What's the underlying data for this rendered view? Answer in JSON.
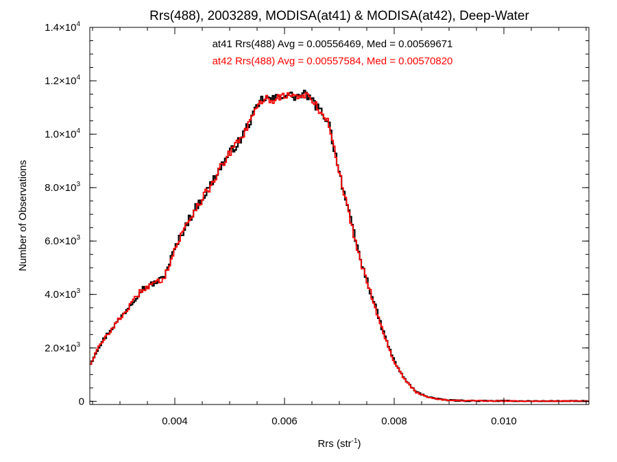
{
  "chart_data": {
    "type": "line",
    "title": "Rrs(488), 2003289, MODISA(at41) & MODISA(at42), Deep-Water",
    "xlabel": {
      "base": "Rrs (str",
      "sup": "-1",
      "close": ")"
    },
    "ylabel": "Number of Observations",
    "xlim": [
      0.00245,
      0.01155
    ],
    "ylim": [
      -120,
      14000
    ],
    "x_ticks": [
      {
        "value": 0.004,
        "label": "0.004"
      },
      {
        "value": 0.006,
        "label": "0.006"
      },
      {
        "value": 0.008,
        "label": "0.008"
      },
      {
        "value": 0.01,
        "label": "0.010"
      }
    ],
    "y_ticks": [
      {
        "value": 0,
        "label": "0",
        "exp": ""
      },
      {
        "value": 2000,
        "label": "2.0×10",
        "exp": "3"
      },
      {
        "value": 4000,
        "label": "4.0×10",
        "exp": "3"
      },
      {
        "value": 6000,
        "label": "6.0×10",
        "exp": "3"
      },
      {
        "value": 8000,
        "label": "8.0×10",
        "exp": "3"
      },
      {
        "value": 10000,
        "label": "1.0×10",
        "exp": "4"
      },
      {
        "value": 12000,
        "label": "1.2×10",
        "exp": "4"
      },
      {
        "value": 14000,
        "label": "1.4×10",
        "exp": "4"
      }
    ],
    "x_minor_step": 0.0005,
    "y_minor_step": 500,
    "annotations": [
      {
        "text": "at41 Rrs(488) Avg = 0.00556469, Med = 0.00569671",
        "color": "#000000"
      },
      {
        "text": "at42 Rrs(488) Avg = 0.00557584, Med = 0.00570820",
        "color": "#ff0000"
      }
    ],
    "grid": false,
    "bin_width": 3e-05,
    "series": [
      {
        "color": "#000000",
        "x": [
          0.00245,
          0.0026,
          0.0028,
          0.003,
          0.0032,
          0.0034,
          0.0036,
          0.0037,
          0.0038,
          0.004,
          0.0042,
          0.0044,
          0.0046,
          0.0048,
          0.005,
          0.0052,
          0.0054,
          0.0056,
          0.0058,
          0.006,
          0.0062,
          0.0064,
          0.0066,
          0.0068,
          0.007,
          0.0072,
          0.0074,
          0.0076,
          0.0078,
          0.008,
          0.0082,
          0.0084,
          0.0086,
          0.0088,
          0.009,
          0.0092,
          0.0095,
          0.01,
          0.0105,
          0.011,
          0.01155
        ],
        "y": [
          1350,
          2000,
          2600,
          3100,
          3650,
          4200,
          4400,
          4500,
          4650,
          5700,
          6600,
          7300,
          7900,
          8650,
          9300,
          9800,
          10600,
          11350,
          11300,
          11500,
          11400,
          11500,
          11000,
          10500,
          8600,
          6800,
          5200,
          3900,
          2600,
          1500,
          800,
          350,
          180,
          80,
          40,
          25,
          15,
          8,
          5,
          3,
          2
        ]
      },
      {
        "color": "#ff0000",
        "x": [
          0.00245,
          0.0026,
          0.0028,
          0.003,
          0.0032,
          0.0034,
          0.0036,
          0.0037,
          0.0038,
          0.004,
          0.0042,
          0.0044,
          0.0046,
          0.0048,
          0.005,
          0.0052,
          0.0054,
          0.0056,
          0.0058,
          0.006,
          0.0062,
          0.0064,
          0.0066,
          0.0068,
          0.007,
          0.0072,
          0.0074,
          0.0076,
          0.0078,
          0.008,
          0.0082,
          0.0084,
          0.0086,
          0.0088,
          0.009,
          0.0092,
          0.0095,
          0.01,
          0.0105,
          0.011,
          0.01155
        ],
        "y": [
          1350,
          1980,
          2580,
          3100,
          3620,
          4180,
          4380,
          4480,
          4620,
          5680,
          6580,
          7300,
          7880,
          8620,
          9280,
          9800,
          10580,
          11320,
          11300,
          11480,
          11400,
          11480,
          11000,
          10450,
          8580,
          6780,
          5180,
          3880,
          2580,
          1480,
          790,
          340,
          175,
          80,
          40,
          25,
          15,
          8,
          5,
          3,
          2
        ]
      }
    ]
  }
}
